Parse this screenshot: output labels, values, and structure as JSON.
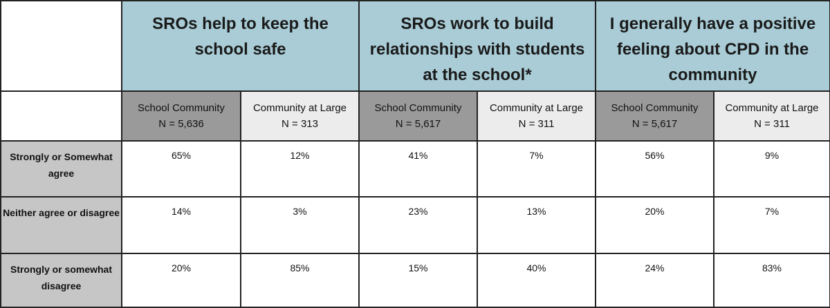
{
  "questions": [
    {
      "label": "SROs help to keep the school safe"
    },
    {
      "label": "SROs work to build relationships with students at the school*"
    },
    {
      "label": "I generally have a positive feeling about CPD in the community"
    }
  ],
  "groups": [
    {
      "name": "School Community",
      "n": "N = 5,636"
    },
    {
      "name": "Community at Large",
      "n": "N = 313"
    },
    {
      "name": "School Community",
      "n": "N = 5,617"
    },
    {
      "name": "Community at Large",
      "n": "N = 311"
    },
    {
      "name": "School Community",
      "n": "N = 5,617"
    },
    {
      "name": "Community at Large",
      "n": "N = 311"
    }
  ],
  "rows": [
    {
      "label": "Strongly or Somewhat agree",
      "values": [
        "65%",
        "12%",
        "41%",
        "7%",
        "56%",
        "9%"
      ]
    },
    {
      "label": "Neither agree or disagree",
      "values": [
        "14%",
        "3%",
        "23%",
        "13%",
        "20%",
        "7%"
      ]
    },
    {
      "label": "Strongly or somewhat disagree",
      "values": [
        "20%",
        "85%",
        "15%",
        "40%",
        "24%",
        "83%"
      ]
    }
  ]
}
